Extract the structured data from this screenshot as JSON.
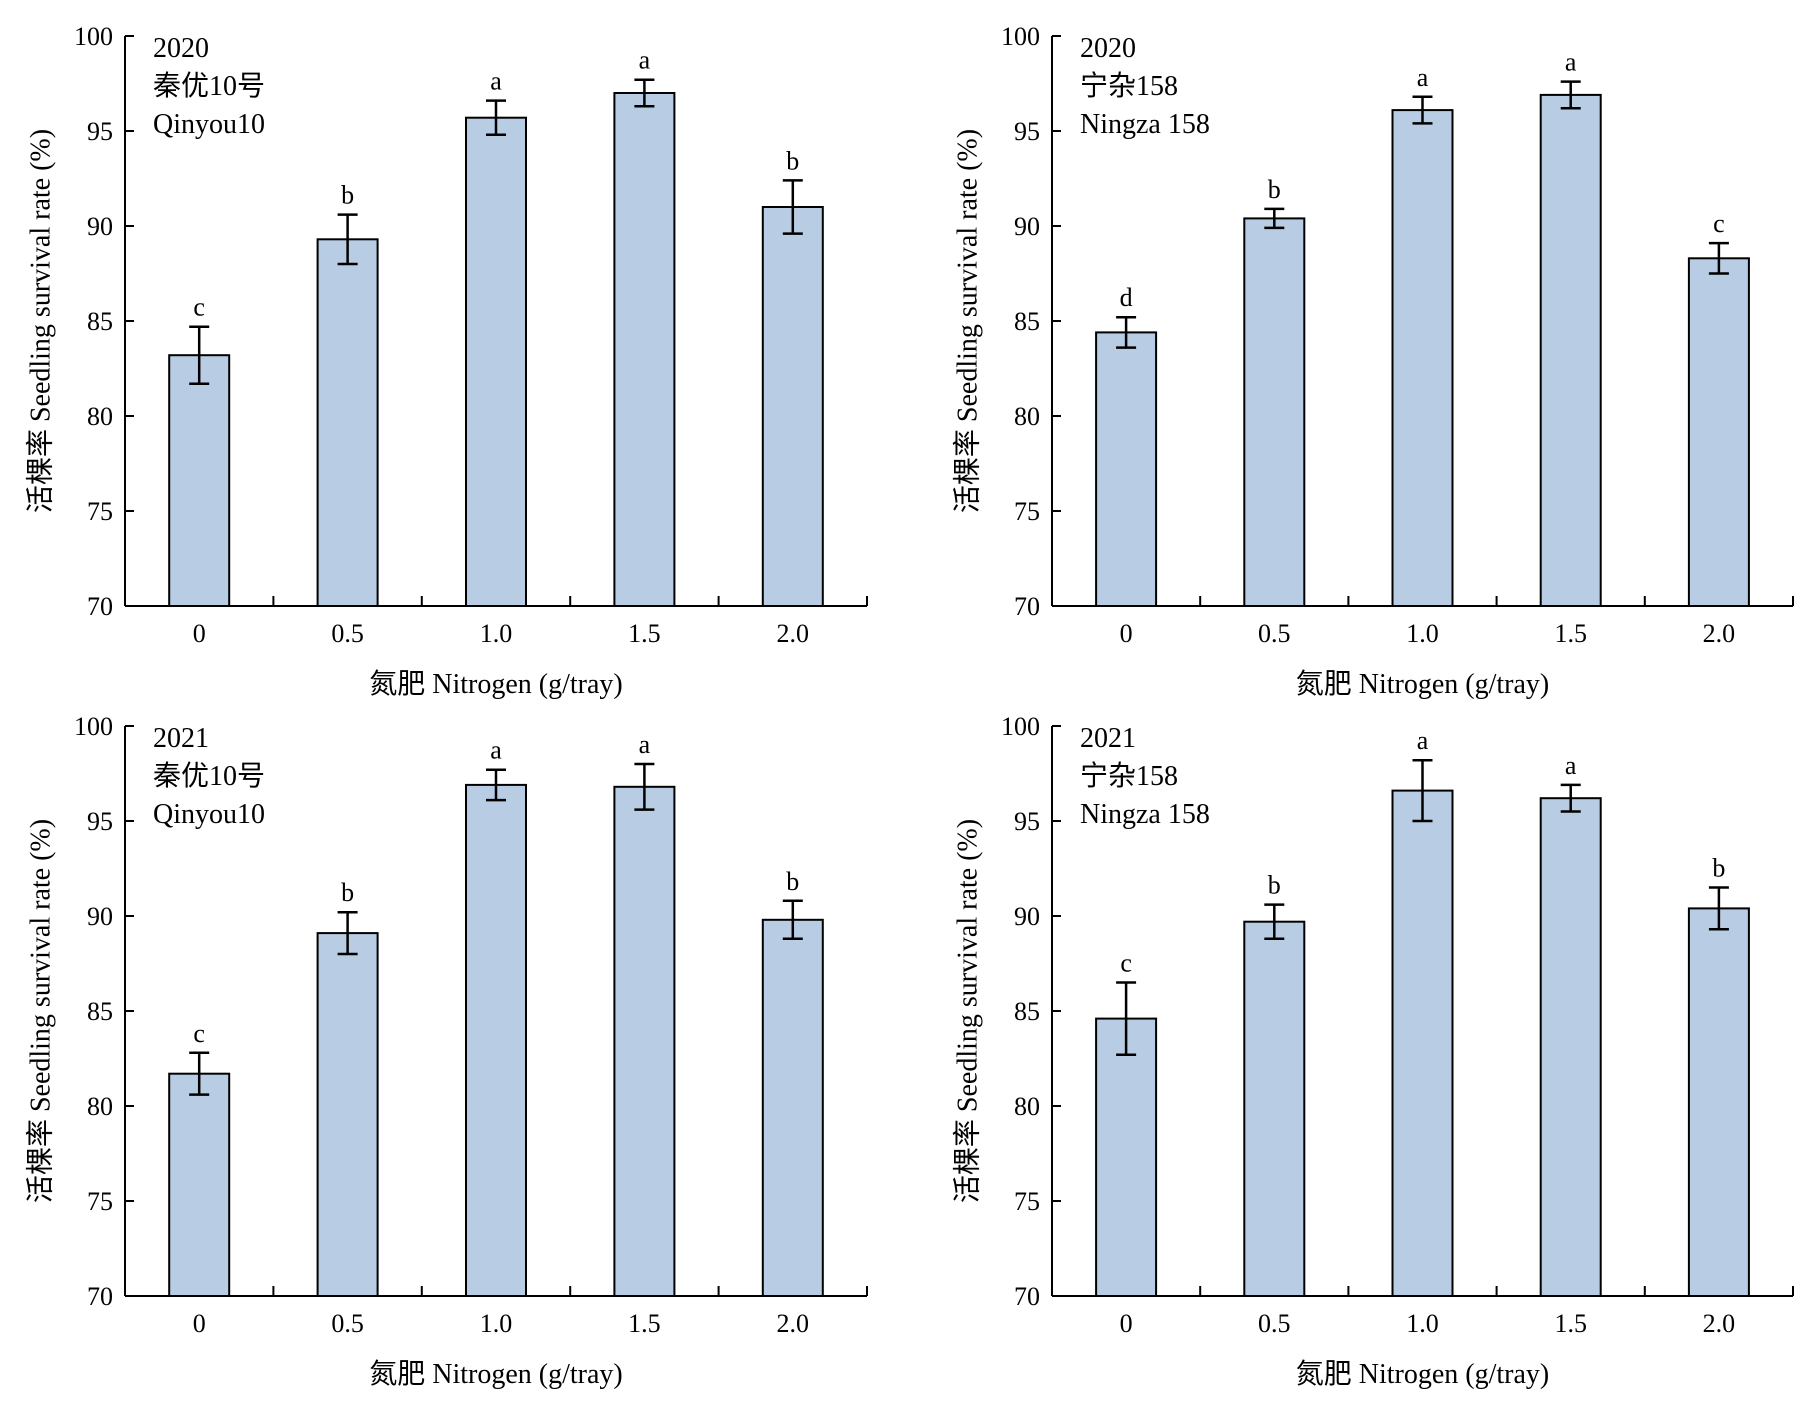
{
  "colors": {
    "bar_fill": "#b8cce4",
    "bar_stroke": "#000000",
    "axis": "#000000"
  },
  "chart_data": [
    {
      "type": "bar",
      "panel": "top-left",
      "inset_lines": [
        "2020",
        "秦优10号",
        "Qinyou10"
      ],
      "xlabel": "氮肥 Nitrogen (g/tray)",
      "ylabel": "活棵率 Seedling survival rate (%)",
      "categories": [
        "0",
        "0.5",
        "1.0",
        "1.5",
        "2.0"
      ],
      "values": [
        83.2,
        89.3,
        95.7,
        97.0,
        91.0
      ],
      "errors": [
        1.5,
        1.3,
        0.9,
        0.7,
        1.4
      ],
      "letters": [
        "c",
        "b",
        "a",
        "a",
        "b"
      ],
      "ylim": [
        70,
        100
      ],
      "yticks": [
        "70",
        "75",
        "80",
        "85",
        "90",
        "95",
        "100"
      ]
    },
    {
      "type": "bar",
      "panel": "top-right",
      "inset_lines": [
        "2020",
        "宁杂158",
        "Ningza 158"
      ],
      "xlabel": "氮肥 Nitrogen (g/tray)",
      "ylabel": "活棵率 Seedling survival rate (%)",
      "categories": [
        "0",
        "0.5",
        "1.0",
        "1.5",
        "2.0"
      ],
      "values": [
        84.4,
        90.4,
        96.1,
        96.9,
        88.3
      ],
      "errors": [
        0.8,
        0.5,
        0.7,
        0.7,
        0.8
      ],
      "letters": [
        "d",
        "b",
        "a",
        "a",
        "c"
      ],
      "ylim": [
        70,
        100
      ],
      "yticks": [
        "70",
        "75",
        "80",
        "85",
        "90",
        "95",
        "100"
      ]
    },
    {
      "type": "bar",
      "panel": "bottom-left",
      "inset_lines": [
        "2021",
        "秦优10号",
        "Qinyou10"
      ],
      "xlabel": "氮肥 Nitrogen (g/tray)",
      "ylabel": "活棵率 Seedling survival rate (%)",
      "categories": [
        "0",
        "0.5",
        "1.0",
        "1.5",
        "2.0"
      ],
      "values": [
        81.7,
        89.1,
        96.9,
        96.8,
        89.8
      ],
      "errors": [
        1.1,
        1.1,
        0.8,
        1.2,
        1.0
      ],
      "letters": [
        "c",
        "b",
        "a",
        "a",
        "b"
      ],
      "ylim": [
        70,
        100
      ],
      "yticks": [
        "70",
        "75",
        "80",
        "85",
        "90",
        "95",
        "100"
      ]
    },
    {
      "type": "bar",
      "panel": "bottom-right",
      "inset_lines": [
        "2021",
        "宁杂158",
        "Ningza 158"
      ],
      "xlabel": "氮肥 Nitrogen (g/tray)",
      "ylabel": "活棵率 Seedling survival rate (%)",
      "categories": [
        "0",
        "0.5",
        "1.0",
        "1.5",
        "2.0"
      ],
      "values": [
        84.6,
        89.7,
        96.6,
        96.2,
        90.4
      ],
      "errors": [
        1.9,
        0.9,
        1.6,
        0.7,
        1.1
      ],
      "letters": [
        "c",
        "b",
        "a",
        "a",
        "b"
      ],
      "ylim": [
        70,
        100
      ],
      "yticks": [
        "70",
        "75",
        "80",
        "85",
        "90",
        "95",
        "100"
      ]
    }
  ]
}
